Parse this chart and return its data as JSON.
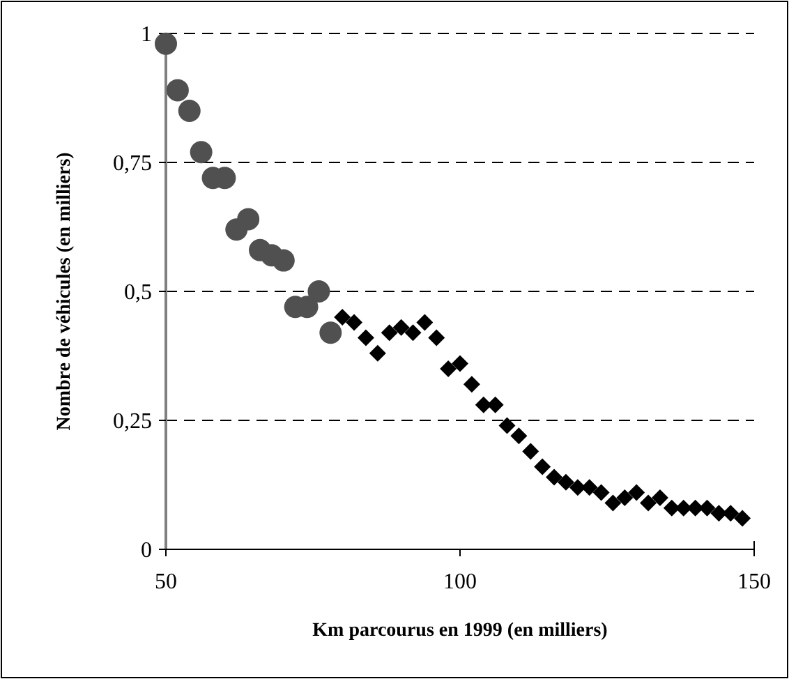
{
  "chart_data": {
    "type": "scatter",
    "xlabel": "Km parcourus en 1999 (en milliers)",
    "ylabel": "Nombre de véhicules (en milliers)",
    "xlim": [
      50,
      150
    ],
    "xticks": [
      50,
      100,
      150
    ],
    "ylim": [
      0,
      1
    ],
    "yticks": [
      0,
      {
        "value": 0.25,
        "label": "0,25"
      },
      {
        "value": 0.5,
        "label": "0,5"
      },
      {
        "value": 0.75,
        "label": "0,75"
      },
      1
    ],
    "grid": "y",
    "series": [
      {
        "color": "#505050",
        "marker": "circle",
        "x": [
          50,
          52,
          54,
          56,
          58,
          60,
          62,
          64,
          66,
          68,
          70,
          72,
          74,
          76,
          78
        ],
        "values": [
          0.98,
          0.89,
          0.85,
          0.77,
          0.72,
          0.72,
          0.62,
          0.64,
          0.58,
          0.57,
          0.56,
          0.47,
          0.47,
          0.5,
          0.42
        ]
      },
      {
        "color": "#000000",
        "marker": "diamond",
        "x": [
          80,
          82,
          84,
          86,
          88,
          90,
          92,
          94,
          96,
          98,
          100,
          102,
          104,
          106,
          108,
          110,
          112,
          114,
          116,
          118,
          120,
          122,
          124,
          126,
          128,
          130,
          132,
          134,
          136,
          138,
          140,
          142,
          144,
          146,
          148
        ],
        "values": [
          0.45,
          0.44,
          0.41,
          0.38,
          0.42,
          0.43,
          0.42,
          0.44,
          0.41,
          0.35,
          0.36,
          0.32,
          0.28,
          0.28,
          0.24,
          0.22,
          0.19,
          0.16,
          0.14,
          0.13,
          0.12,
          0.12,
          0.11,
          0.09,
          0.1,
          0.11,
          0.09,
          0.1,
          0.08,
          0.08,
          0.08,
          0.08,
          0.07,
          0.07,
          0.06
        ]
      }
    ]
  }
}
